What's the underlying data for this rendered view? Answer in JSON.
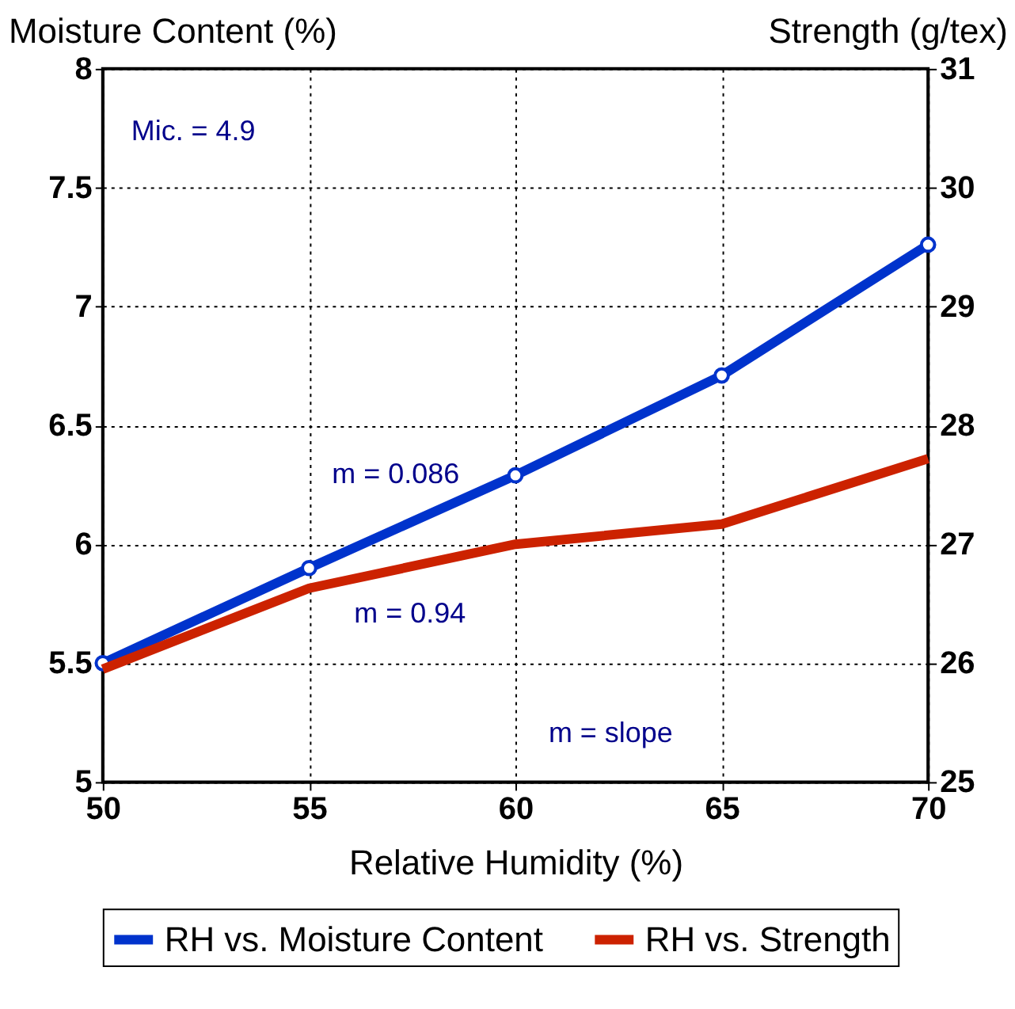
{
  "chart_data": {
    "type": "line",
    "xlabel": "Relative Humidity (%)",
    "ylabel": "Moisture Content (%)",
    "y2label": "Strength (g/tex)",
    "x": [
      50,
      55,
      60,
      65,
      70
    ],
    "series": [
      {
        "name": "RH vs. Moisture Content",
        "color": "#0033cc",
        "values": [
          5.5,
          5.9,
          6.29,
          6.71,
          7.26
        ],
        "marker": "circle"
      },
      {
        "name": "RH vs. Strength",
        "color": "#cc2200",
        "values": [
          25.95,
          26.63,
          27.0,
          27.17,
          27.72
        ],
        "axis": "y2",
        "marker": "none"
      }
    ],
    "xlim": [
      50,
      70
    ],
    "xticks": [
      50,
      55,
      60,
      65,
      70
    ],
    "ylim": [
      5,
      8
    ],
    "yticks": [
      5,
      5.5,
      6,
      6.5,
      7,
      7.5,
      8
    ],
    "y2lim": [
      25,
      31
    ],
    "y2ticks": [
      25,
      26,
      27,
      28,
      29,
      30,
      31
    ],
    "annotations": [
      "Mic. = 4.9",
      "m = 0.086",
      "m = 0.94",
      "m = slope"
    ],
    "grid": true,
    "legend": "bottom",
    "line_style": "solid"
  }
}
